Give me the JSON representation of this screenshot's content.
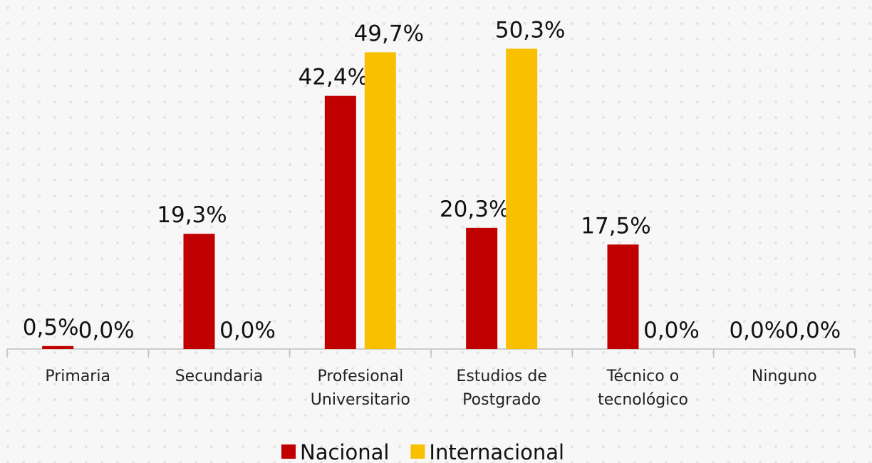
{
  "chart_data": {
    "type": "bar",
    "categories": [
      "Primaria",
      "Secundaria",
      "Profesional Universitario",
      "Estudios de Postgrado",
      "Técnico o tecnológico",
      "Ninguno"
    ],
    "series": [
      {
        "name": "Nacional",
        "color": "#c00000",
        "values": [
          0.5,
          19.3,
          42.4,
          20.3,
          17.5,
          0.0
        ],
        "value_labels": [
          "0,5%",
          "19,3%",
          "42,4%",
          "20,3%",
          "17,5%",
          "0,0%"
        ]
      },
      {
        "name": "Internacional",
        "color": "#f9c000",
        "values": [
          0.0,
          0.0,
          49.7,
          50.3,
          0.0,
          0.0
        ],
        "value_labels": [
          "0,0%",
          "0,0%",
          "49,7%",
          "50,3%",
          "0,0%",
          "0,0%"
        ]
      }
    ],
    "ylim": [
      0,
      55
    ]
  }
}
